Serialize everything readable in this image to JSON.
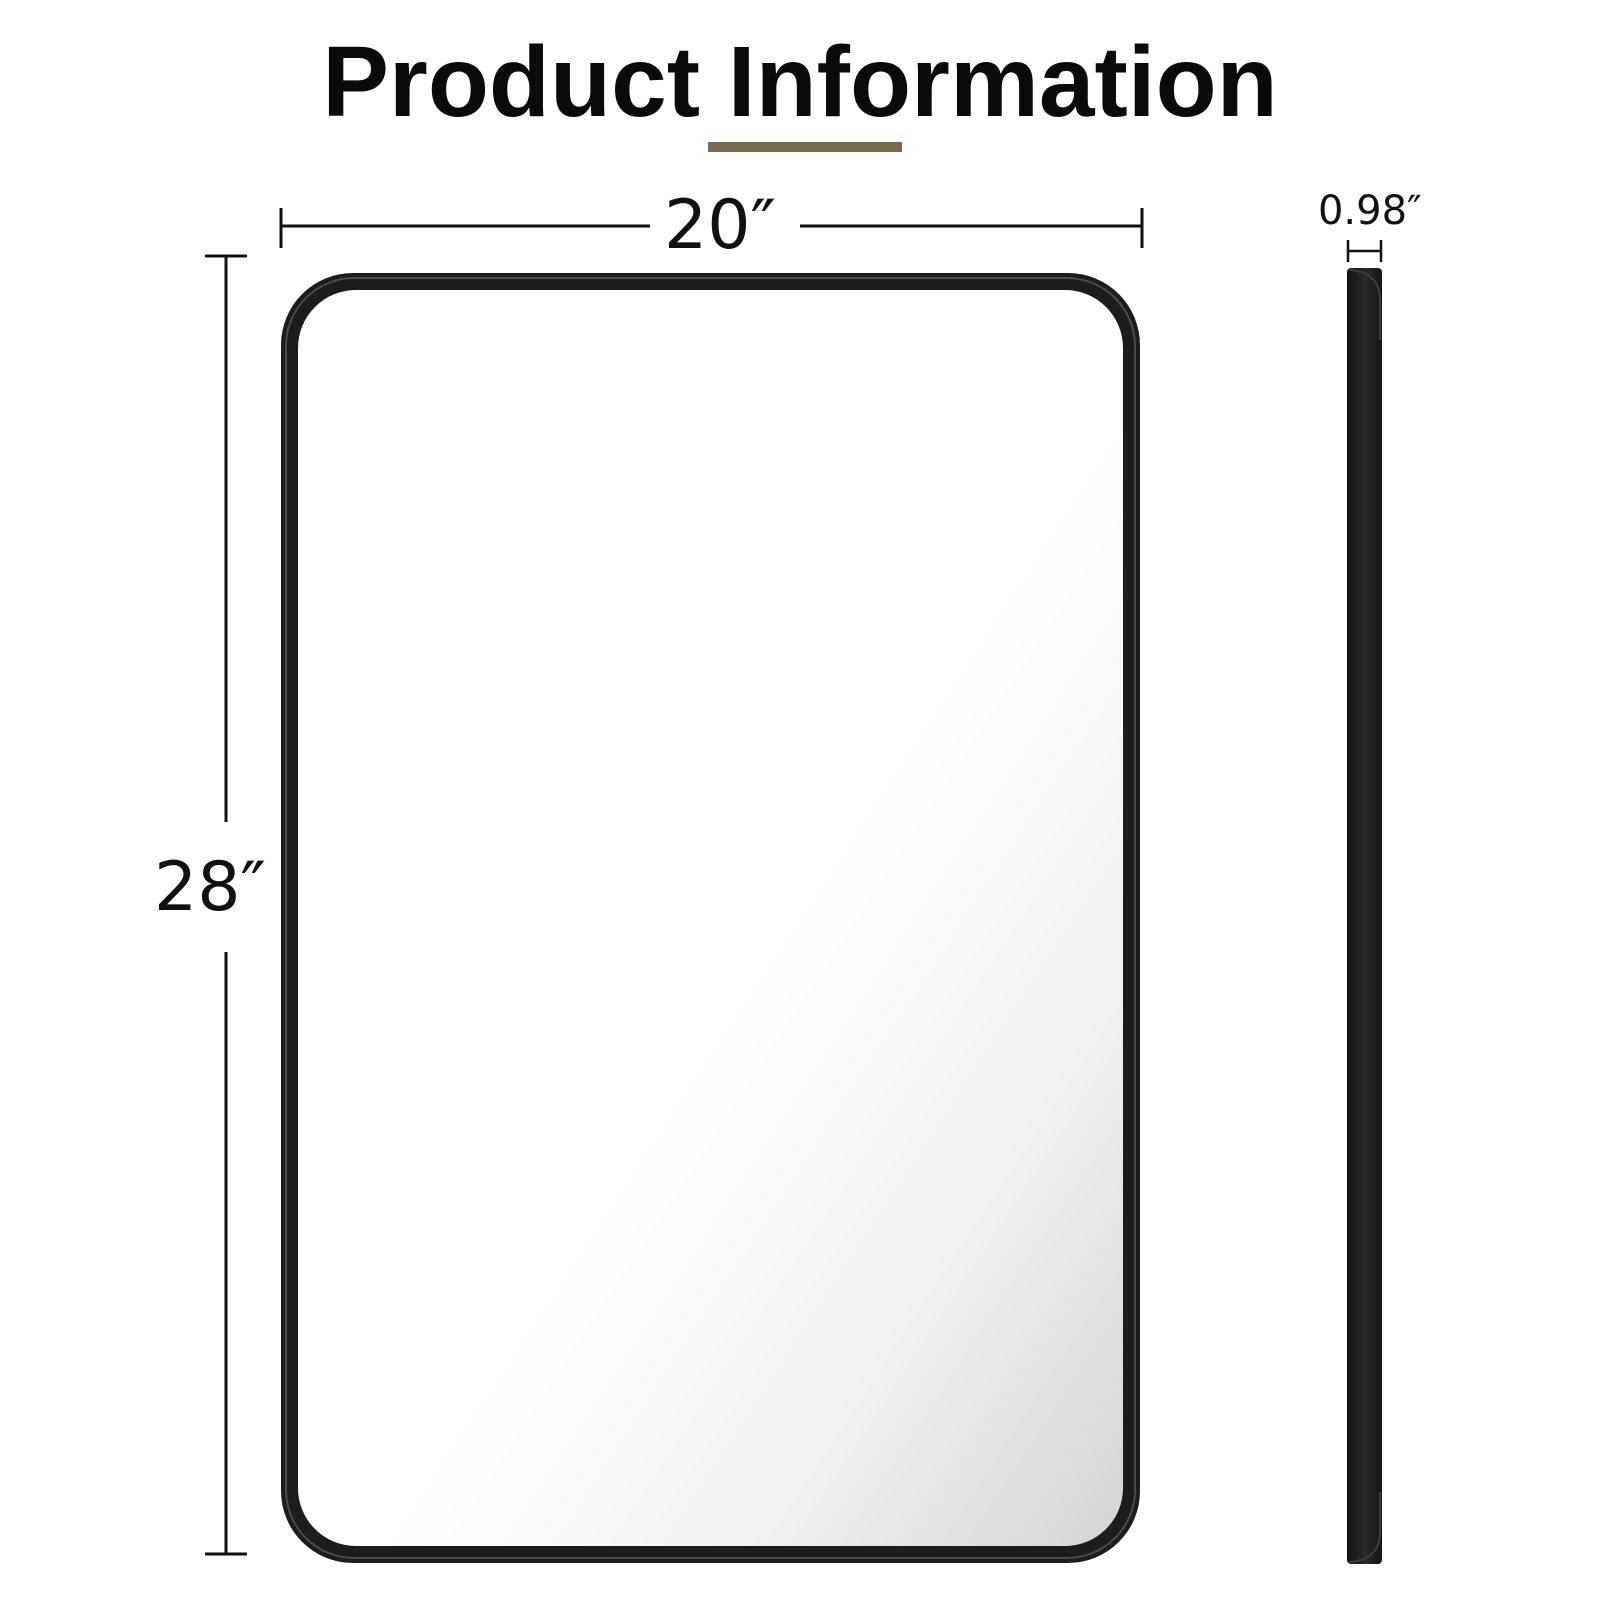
{
  "title": "Product Information",
  "accent_color": "#7a6a50",
  "dimensions": {
    "width_label": "20″",
    "height_label": "28″",
    "depth_label": "0.98″"
  },
  "product": {
    "frame_color": "#1c1c1c",
    "frame_shape": "rounded-rectangle",
    "views": [
      "front",
      "side"
    ]
  }
}
